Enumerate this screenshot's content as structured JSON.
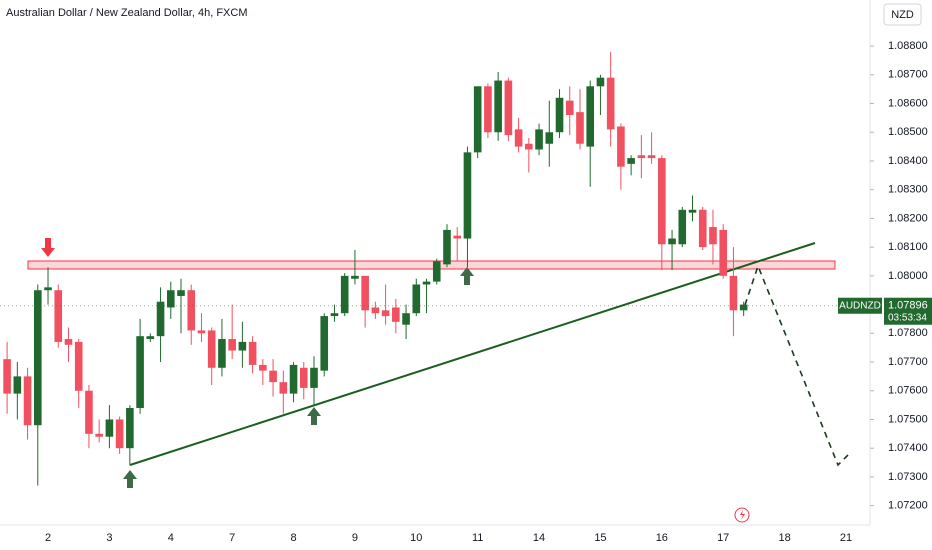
{
  "chart_data": {
    "type": "candlestick",
    "title": "Australian Dollar / New Zealand Dollar, 4h, FXCM",
    "currency": "NZD",
    "symbol": "AUDNZD",
    "last_price": 1.07896,
    "countdown": "03:53:34",
    "up_color": "#22692f",
    "down_color": "#f0505f",
    "categories": [
      null,
      null,
      null,
      null,
      "2",
      null,
      null,
      null,
      null,
      null,
      "3",
      null,
      null,
      null,
      null,
      null,
      "4",
      null,
      null,
      null,
      null,
      null,
      "7",
      null,
      null,
      null,
      null,
      null,
      "8",
      null,
      null,
      null,
      null,
      null,
      "9",
      null,
      null,
      null,
      null,
      null,
      "10",
      null,
      null,
      null,
      null,
      null,
      "11",
      null,
      null,
      null,
      null,
      null,
      "14",
      null,
      null,
      null,
      null,
      null,
      "15",
      null,
      null,
      null,
      null,
      null,
      "16",
      null,
      null,
      null,
      null,
      null,
      "17",
      null,
      null,
      null,
      null,
      null,
      "18",
      null,
      null,
      null,
      null,
      null,
      "21",
      null
    ],
    "open": [
      1.0771,
      1.0759,
      1.0765,
      1.0748,
      1.0795,
      1.0795,
      1.0778,
      1.0777,
      1.076,
      1.0745,
      1.0744,
      1.075,
      1.074,
      1.0754,
      1.0778,
      1.0779,
      1.0789,
      1.0793,
      1.0795,
      1.0781,
      1.0781,
      1.0768,
      1.0778,
      1.0774,
      1.0777,
      1.0769,
      1.0767,
      1.0763,
      1.0759,
      1.0768,
      1.0761,
      1.0767,
      1.0786,
      1.0787,
      1.0799,
      1.08,
      1.0789,
      1.0788,
      1.0789,
      1.0783,
      1.0787,
      1.0797,
      1.0798,
      1.0804,
      1.0814,
      1.0813,
      1.0843,
      1.0866,
      1.085,
      1.0868,
      1.0851,
      1.0846,
      1.0844,
      1.0846,
      1.085,
      1.0861,
      1.0857,
      1.0845,
      1.0866,
      1.0869,
      1.0852,
      1.0839,
      1.0842,
      1.0842,
      1.0841,
      1.0811,
      1.0811,
      1.0822,
      1.0823,
      1.0817,
      1.0816,
      1.08,
      1.0788,
      null,
      null,
      null,
      null,
      null,
      null,
      null,
      null,
      null,
      null,
      null
    ],
    "high": [
      1.0777,
      1.077,
      1.0768,
      1.0797,
      1.0803,
      1.0797,
      1.0782,
      1.0778,
      1.0762,
      1.075,
      1.0755,
      1.0751,
      1.0755,
      1.0785,
      1.078,
      1.0796,
      1.0798,
      1.0799,
      1.0797,
      1.0787,
      1.0782,
      1.0785,
      1.079,
      1.0784,
      1.0779,
      1.0771,
      1.0771,
      1.0767,
      1.077,
      1.077,
      1.0772,
      1.0787,
      1.079,
      1.0801,
      1.0809,
      1.08,
      1.0791,
      1.0797,
      1.0792,
      1.079,
      1.0799,
      1.0799,
      1.0806,
      1.0818,
      1.0817,
      1.0845,
      1.0866,
      1.0867,
      1.0871,
      1.0869,
      1.0855,
      1.0848,
      1.0853,
      1.0861,
      1.0865,
      1.0866,
      1.0865,
      1.0868,
      1.087,
      1.0878,
      1.0853,
      1.0842,
      1.0849,
      1.085,
      1.0842,
      1.0816,
      1.0824,
      1.0828,
      1.0824,
      1.0823,
      1.0818,
      1.081,
      1.0791,
      null,
      null,
      null,
      null,
      null,
      null,
      null,
      null,
      null,
      null,
      null
    ],
    "low": [
      1.0752,
      1.075,
      1.0743,
      1.0727,
      1.079,
      1.0775,
      1.077,
      1.0754,
      1.074,
      1.0742,
      1.074,
      1.0738,
      1.0734,
      1.0752,
      1.0777,
      1.077,
      1.0785,
      1.078,
      1.0776,
      1.0777,
      1.0762,
      1.0765,
      1.0771,
      1.0768,
      1.0766,
      1.0762,
      1.0758,
      1.0752,
      1.0756,
      1.0757,
      1.0755,
      1.0765,
      1.0784,
      1.0786,
      1.0797,
      1.0782,
      1.0785,
      1.0783,
      1.078,
      1.0778,
      1.0786,
      1.0787,
      1.0797,
      1.0803,
      1.0805,
      1.0803,
      1.0841,
      1.0848,
      1.0847,
      1.0847,
      1.0843,
      1.0836,
      1.0842,
      1.0838,
      1.0848,
      1.0849,
      1.0844,
      1.0831,
      1.0856,
      1.0845,
      1.083,
      1.0835,
      1.0834,
      1.0839,
      1.0802,
      1.0802,
      1.081,
      1.0819,
      1.0809,
      1.0804,
      1.0799,
      1.0779,
      1.0786,
      null,
      null,
      null,
      null,
      null,
      null,
      null,
      null,
      null,
      null,
      null
    ],
    "close": [
      1.0759,
      1.0765,
      1.0748,
      1.0795,
      1.0796,
      1.0777,
      1.0776,
      1.076,
      1.0745,
      1.0744,
      1.075,
      1.074,
      1.0754,
      1.0779,
      1.0779,
      1.0791,
      1.0795,
      1.0795,
      1.0781,
      1.078,
      1.0768,
      1.0778,
      1.0774,
      1.0777,
      1.0769,
      1.0767,
      1.0763,
      1.0759,
      1.0769,
      1.0761,
      1.0768,
      1.0786,
      1.0787,
      1.08,
      1.08,
      1.0788,
      1.0787,
      1.0786,
      1.0784,
      1.0787,
      1.0797,
      1.0798,
      1.0805,
      1.0816,
      1.0813,
      1.0843,
      1.0866,
      1.085,
      1.0868,
      1.0849,
      1.0845,
      1.0844,
      1.0851,
      1.085,
      1.0862,
      1.0856,
      1.0846,
      1.0866,
      1.0869,
      1.0851,
      1.0838,
      1.0841,
      1.0841,
      1.0841,
      1.0811,
      1.0813,
      1.0823,
      1.0823,
      1.081,
      1.0811,
      1.08,
      1.0788,
      1.079,
      null,
      null,
      null,
      null,
      null,
      null,
      null,
      null,
      null,
      null,
      null
    ],
    "ylim": [
      1.0715,
      1.0895
    ],
    "yticks": [
      {
        "value": 1.072,
        "label": "1.07200"
      },
      {
        "value": 1.073,
        "label": "1.07300"
      },
      {
        "value": 1.074,
        "label": "1.07400"
      },
      {
        "value": 1.075,
        "label": "1.07500"
      },
      {
        "value": 1.076,
        "label": "1.07600"
      },
      {
        "value": 1.077,
        "label": "1.07700"
      },
      {
        "value": 1.078,
        "label": "1.07800"
      },
      {
        "value": 1.079,
        "label": "1.07900"
      },
      {
        "value": 1.08,
        "label": "1.08000"
      },
      {
        "value": 1.081,
        "label": "1.08100"
      },
      {
        "value": 1.082,
        "label": "1.08200"
      },
      {
        "value": 1.083,
        "label": "1.08300"
      },
      {
        "value": 1.084,
        "label": "1.08400"
      },
      {
        "value": 1.085,
        "label": "1.08500"
      },
      {
        "value": 1.086,
        "label": "1.08600"
      },
      {
        "value": 1.087,
        "label": "1.08700"
      },
      {
        "value": 1.088,
        "label": "1.08800"
      }
    ],
    "grid": false
  }
}
